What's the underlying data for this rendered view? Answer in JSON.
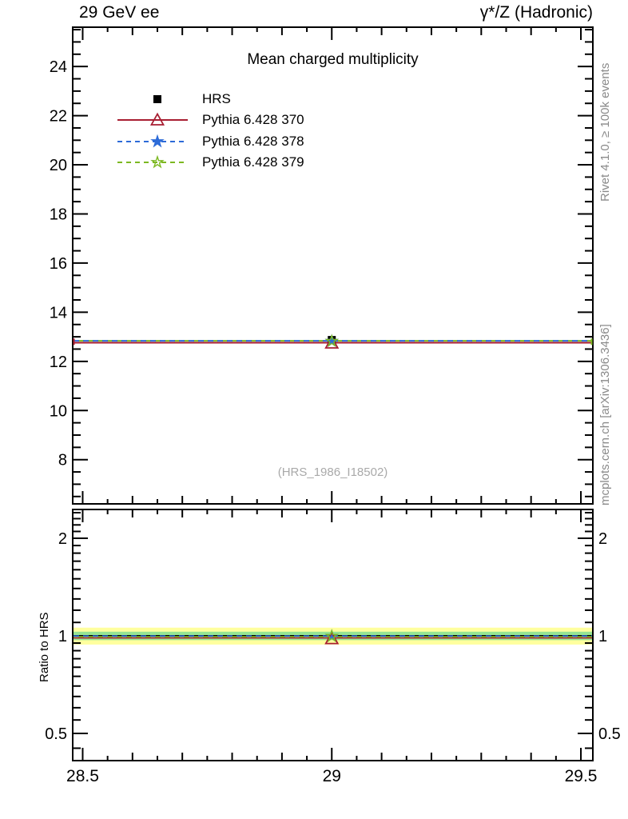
{
  "header": {
    "left": "29 GeV ee",
    "right": "γ*/Z (Hadronic)"
  },
  "title": "Mean charged multiplicity",
  "watermark": "(HRS_1986_I18502)",
  "side_notes": {
    "top": "Rivet 4.1.0, ≥ 100k events",
    "bottom": "mcplots.cern.ch [arXiv:1306.3436]"
  },
  "legend": [
    {
      "label": "HRS",
      "marker": "filled-square",
      "line": "none",
      "color": "#000000"
    },
    {
      "label": "Pythia 6.428 370",
      "marker": "open-triangle",
      "line": "solid",
      "color": "#a81e32"
    },
    {
      "label": "Pythia 6.428 378",
      "marker": "filled-star",
      "line": "dashed",
      "color": "#2d6bd8"
    },
    {
      "label": "Pythia 6.428 379",
      "marker": "open-star",
      "line": "dashed",
      "color": "#7cb821"
    }
  ],
  "chart_data": {
    "type": "line",
    "title": "Mean charged multiplicity",
    "xlabel": "",
    "x": {
      "min": 28.48,
      "max": 29.524,
      "ticks": [
        28.5,
        29,
        29.5
      ],
      "tick_labels": [
        "28.5",
        "29",
        "29.5"
      ],
      "minor_step": 0.05
    },
    "main_panel": {
      "scale": "linear",
      "ylim": [
        6.2,
        25.6
      ],
      "yticks": [
        8,
        10,
        12,
        14,
        16,
        18,
        20,
        22,
        24
      ],
      "minor_step": 0.5,
      "series": [
        {
          "name": "HRS",
          "x": [
            29
          ],
          "y": [
            12.87
          ],
          "marker": "filled-square",
          "line": "none",
          "color": "#000000"
        },
        {
          "name": "Pythia 6.428 370",
          "x": [
            29
          ],
          "y": [
            12.76
          ],
          "marker": "open-triangle",
          "line": "solid",
          "color": "#a81e32"
        },
        {
          "name": "Pythia 6.428 378",
          "x": [
            29
          ],
          "y": [
            12.82
          ],
          "marker": "filled-star",
          "line": "dashed",
          "color": "#2d6bd8"
        },
        {
          "name": "Pythia 6.428 379",
          "x": [
            29
          ],
          "y": [
            12.82
          ],
          "marker": "open-star",
          "line": "dashed",
          "color": "#7cb821"
        }
      ]
    },
    "ratio_panel": {
      "scale": "log",
      "ylabel": "Ratio to HRS",
      "ylim": [
        0.412,
        2.455
      ],
      "yticks": [
        0.5,
        1,
        2
      ],
      "ytick_labels": [
        "0.5",
        "1",
        "2"
      ],
      "minor_ticks": [
        0.45,
        0.55,
        0.6,
        0.65,
        0.7,
        0.75,
        0.8,
        0.85,
        0.9,
        0.95,
        1.1,
        1.2,
        1.3,
        1.4,
        1.5,
        1.6,
        1.7,
        1.8,
        1.9,
        2.1,
        2.2,
        2.3,
        2.4
      ],
      "reference": 1,
      "bands": [
        {
          "color": "#ffff9e",
          "lo": 0.94,
          "hi": 1.06
        },
        {
          "color": "#97e592",
          "lo": 0.97,
          "hi": 1.03
        }
      ],
      "series": [
        {
          "name": "Pythia 6.428 370",
          "ratio": 0.991,
          "marker": "open-triangle",
          "line": "solid",
          "color": "#a81e32"
        },
        {
          "name": "Pythia 6.428 378",
          "ratio": 0.997,
          "marker": "filled-star",
          "line": "dashed",
          "color": "#2d6bd8"
        },
        {
          "name": "Pythia 6.428 379",
          "ratio": 0.997,
          "marker": "open-star",
          "line": "dashed",
          "color": "#7cb821"
        }
      ]
    }
  }
}
